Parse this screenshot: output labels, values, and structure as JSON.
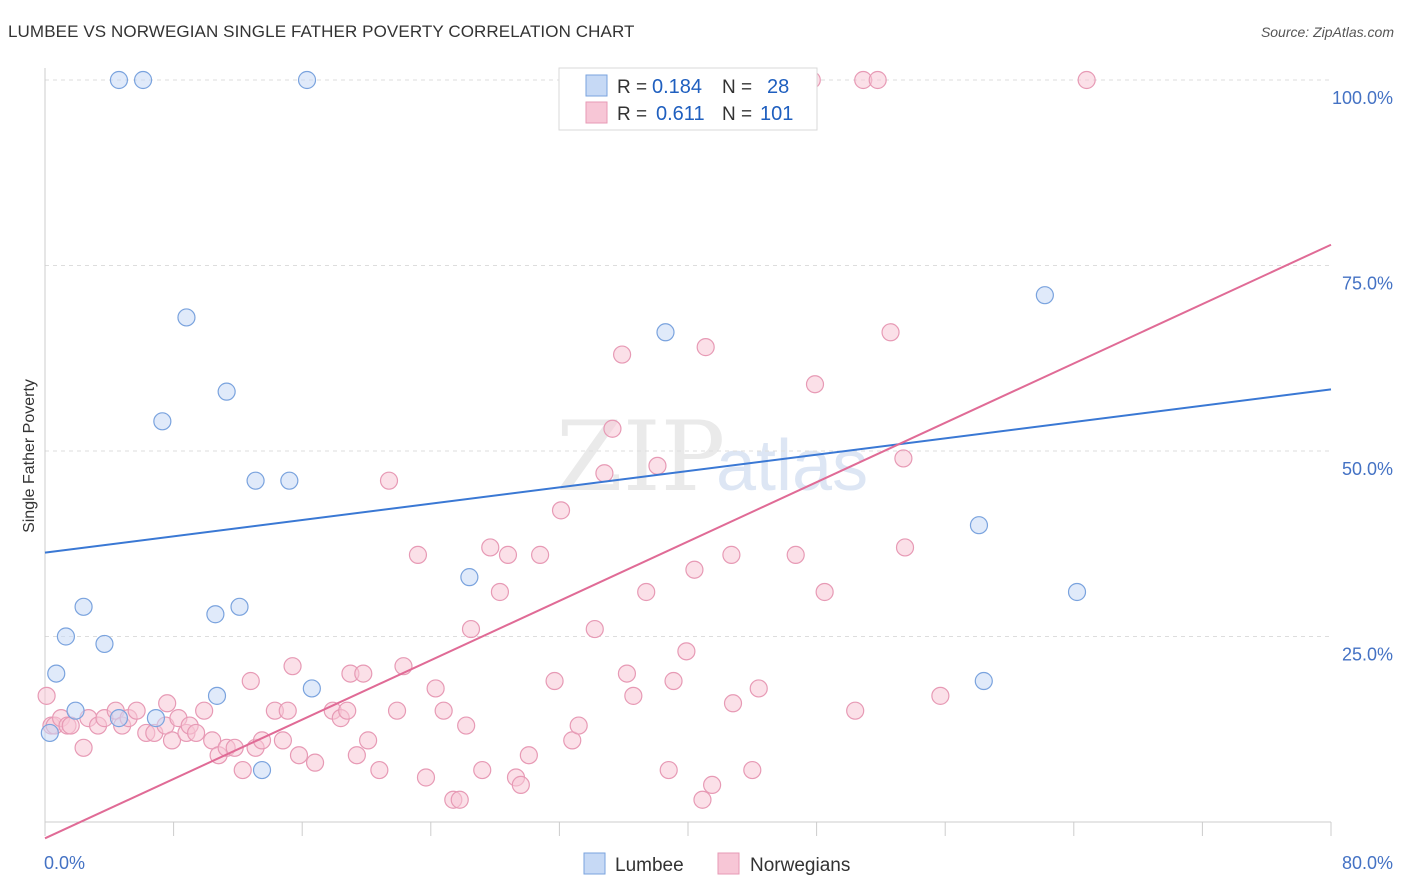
{
  "title": "LUMBEE VS NORWEGIAN SINGLE FATHER POVERTY CORRELATION CHART",
  "source": "Source: ZipAtlas.com",
  "watermark": {
    "zip": "ZIP",
    "atlas": "atlas"
  },
  "colors": {
    "lumbee": "#3a78d4",
    "lumbee_fill": "#c6d9f5",
    "norwegian": "#e06b96",
    "norwegian_fill": "#f7c6d6",
    "tick_text": "#4472c4"
  },
  "legend": {
    "rows": [
      {
        "r_label": "R =",
        "r_value": "0.184",
        "n_label": "N =",
        "n_value": "28"
      },
      {
        "r_label": "R =",
        "r_value": "0.611",
        "n_label": "N =",
        "n_value": "101"
      }
    ]
  },
  "bottom_legend": {
    "lumbee": "Lumbee",
    "norwegians": "Norwegians"
  },
  "chart_data": {
    "type": "scatter",
    "title": "LUMBEE VS NORWEGIAN SINGLE FATHER POVERTY CORRELATION CHART",
    "xlabel": "",
    "ylabel": "Single Father Poverty",
    "xlim": [
      0,
      80
    ],
    "ylim": [
      0,
      100
    ],
    "x_tick_labels": [
      "0.0%",
      "80.0%"
    ],
    "y_tick_labels": [
      "25.0%",
      "50.0%",
      "75.0%",
      "100.0%"
    ],
    "y_ticks": [
      25,
      50,
      75,
      100
    ],
    "grid": "horizontal dashed",
    "legend_position": "top-center",
    "series": [
      {
        "name": "Lumbee",
        "r": 0.184,
        "n": 28,
        "trend": {
          "x": [
            0,
            80
          ],
          "y": [
            36.3,
            58.3
          ]
        },
        "points": [
          [
            0.3,
            12
          ],
          [
            0.7,
            20
          ],
          [
            1.3,
            25
          ],
          [
            1.9,
            15
          ],
          [
            2.4,
            29
          ],
          [
            3.7,
            24
          ],
          [
            4.6,
            14
          ],
          [
            4.6,
            100
          ],
          [
            6.1,
            100
          ],
          [
            6.9,
            14
          ],
          [
            7.3,
            54
          ],
          [
            8.8,
            68
          ],
          [
            10.6,
            28
          ],
          [
            10.7,
            17
          ],
          [
            11.3,
            58
          ],
          [
            12.1,
            29
          ],
          [
            13.1,
            46
          ],
          [
            13.5,
            7
          ],
          [
            15.2,
            46
          ],
          [
            16.3,
            100
          ],
          [
            16.6,
            18
          ],
          [
            26.4,
            33
          ],
          [
            38.6,
            66
          ],
          [
            42.4,
            100
          ],
          [
            58.1,
            40
          ],
          [
            58.4,
            19
          ],
          [
            62.2,
            71
          ],
          [
            64.2,
            31
          ]
        ]
      },
      {
        "name": "Norwegians",
        "r": 0.611,
        "n": 101,
        "trend": {
          "x": [
            0,
            80
          ],
          "y": [
            -2.2,
            77.8
          ]
        },
        "points": [
          [
            0.1,
            17
          ],
          [
            0.4,
            13
          ],
          [
            0.6,
            13
          ],
          [
            1.0,
            14
          ],
          [
            1.4,
            13
          ],
          [
            1.6,
            13
          ],
          [
            2.4,
            10
          ],
          [
            2.7,
            14
          ],
          [
            3.3,
            13
          ],
          [
            3.7,
            14
          ],
          [
            4.4,
            15
          ],
          [
            4.8,
            13
          ],
          [
            5.2,
            14
          ],
          [
            5.7,
            15
          ],
          [
            6.3,
            12
          ],
          [
            6.8,
            12
          ],
          [
            7.5,
            13
          ],
          [
            7.6,
            16
          ],
          [
            7.9,
            11
          ],
          [
            8.3,
            14
          ],
          [
            8.8,
            12
          ],
          [
            9.0,
            13
          ],
          [
            9.4,
            12
          ],
          [
            9.9,
            15
          ],
          [
            10.4,
            11
          ],
          [
            10.8,
            9
          ],
          [
            11.3,
            10
          ],
          [
            11.8,
            10
          ],
          [
            12.3,
            7
          ],
          [
            12.8,
            19
          ],
          [
            13.1,
            10
          ],
          [
            13.5,
            11
          ],
          [
            14.3,
            15
          ],
          [
            14.8,
            11
          ],
          [
            15.1,
            15
          ],
          [
            15.4,
            21
          ],
          [
            15.8,
            9
          ],
          [
            16.8,
            8
          ],
          [
            17.9,
            15
          ],
          [
            18.4,
            14
          ],
          [
            18.8,
            15
          ],
          [
            19.0,
            20
          ],
          [
            19.4,
            9
          ],
          [
            19.8,
            20
          ],
          [
            20.1,
            11
          ],
          [
            20.8,
            7
          ],
          [
            21.4,
            46
          ],
          [
            21.9,
            15
          ],
          [
            22.3,
            21
          ],
          [
            23.2,
            36
          ],
          [
            23.7,
            6
          ],
          [
            24.3,
            18
          ],
          [
            24.8,
            15
          ],
          [
            25.4,
            3
          ],
          [
            25.8,
            3
          ],
          [
            26.2,
            13
          ],
          [
            26.5,
            26
          ],
          [
            27.2,
            7
          ],
          [
            27.7,
            37
          ],
          [
            28.3,
            31
          ],
          [
            28.8,
            36
          ],
          [
            29.3,
            6
          ],
          [
            29.6,
            5
          ],
          [
            30.1,
            9
          ],
          [
            30.8,
            36
          ],
          [
            31.7,
            19
          ],
          [
            32.1,
            42
          ],
          [
            32.8,
            11
          ],
          [
            33.2,
            13
          ],
          [
            34.2,
            26
          ],
          [
            34.8,
            47
          ],
          [
            35.3,
            53
          ],
          [
            35.9,
            63
          ],
          [
            36.2,
            20
          ],
          [
            36.6,
            17
          ],
          [
            37.4,
            31
          ],
          [
            38.1,
            48
          ],
          [
            38.8,
            7
          ],
          [
            39.1,
            19
          ],
          [
            39.9,
            23
          ],
          [
            40.4,
            34
          ],
          [
            40.9,
            3
          ],
          [
            41.1,
            64
          ],
          [
            41.5,
            5
          ],
          [
            42.7,
            36
          ],
          [
            42.8,
            16
          ],
          [
            43.3,
            100
          ],
          [
            44.0,
            7
          ],
          [
            44.4,
            18
          ],
          [
            46.7,
            36
          ],
          [
            47.7,
            100
          ],
          [
            47.9,
            59
          ],
          [
            48.5,
            31
          ],
          [
            50.4,
            15
          ],
          [
            50.9,
            100
          ],
          [
            51.8,
            100
          ],
          [
            52.6,
            66
          ],
          [
            53.4,
            49
          ],
          [
            53.5,
            37
          ],
          [
            55.7,
            17
          ],
          [
            64.8,
            100
          ]
        ]
      }
    ]
  }
}
